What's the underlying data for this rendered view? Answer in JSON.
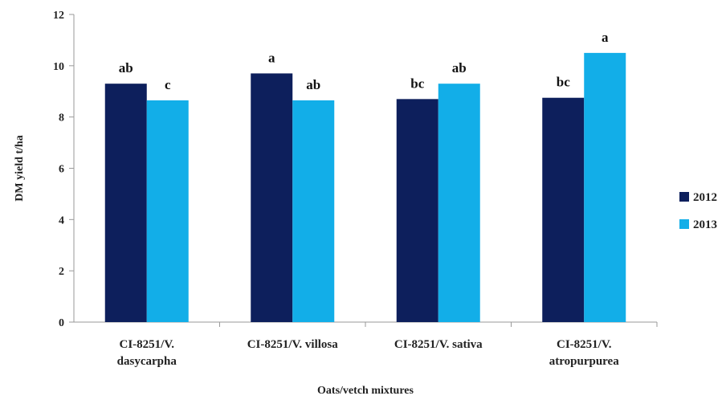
{
  "chart_data": {
    "type": "bar",
    "title": "",
    "xlabel": "Oats/vetch mixtures",
    "ylabel": "DM yield t/ha",
    "ylim": [
      0,
      12
    ],
    "yticks": [
      0,
      2,
      4,
      6,
      8,
      10,
      12
    ],
    "grid": false,
    "legend_position": "right",
    "categories": [
      [
        "CI-8251/V.",
        "dasycarpha"
      ],
      [
        "CI-8251/V. villosa"
      ],
      [
        "CI-8251/V. sativa"
      ],
      [
        "CI-8251/V.",
        "atropurpurea"
      ]
    ],
    "series": [
      {
        "name": "2012",
        "color": "#0d1f5c",
        "values": [
          9.3,
          9.7,
          8.7,
          8.75
        ],
        "labels": [
          "ab",
          "a",
          "bc",
          "bc"
        ]
      },
      {
        "name": "2013",
        "color": "#12aee8",
        "values": [
          8.65,
          8.65,
          9.3,
          10.5
        ],
        "labels": [
          "c",
          "ab",
          "ab",
          "a"
        ]
      }
    ]
  }
}
